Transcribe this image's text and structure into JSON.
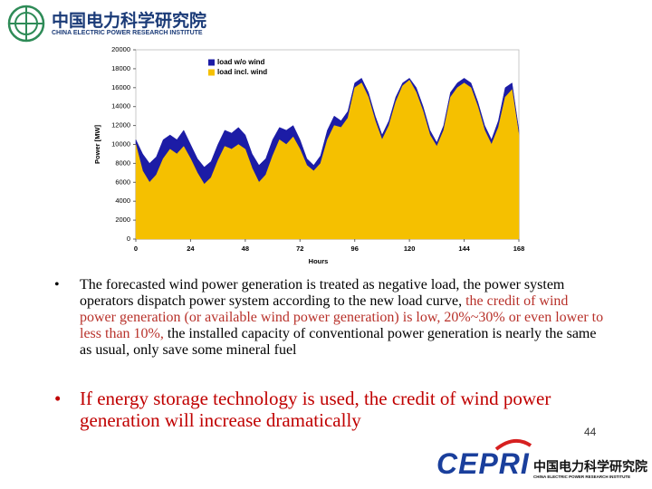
{
  "header": {
    "title": "中国电力科学研究院",
    "subtitle": "CHINA ELECTRIC POWER RESEARCH INSTITUTE"
  },
  "chart_data": {
    "type": "area",
    "xlabel": "Hours",
    "ylabel": "Power [MW]",
    "x": [
      0,
      3,
      6,
      9,
      12,
      15,
      18,
      21,
      24,
      27,
      30,
      33,
      36,
      39,
      42,
      45,
      48,
      51,
      54,
      57,
      60,
      63,
      66,
      69,
      72,
      75,
      78,
      81,
      84,
      87,
      90,
      93,
      96,
      99,
      102,
      105,
      108,
      111,
      114,
      117,
      120,
      123,
      126,
      129,
      132,
      135,
      138,
      141,
      144,
      147,
      150,
      153,
      156,
      159,
      162,
      165,
      168
    ],
    "series": [
      {
        "name": "load w/o wind",
        "color": "#1c1ca6",
        "values": [
          10500,
          9000,
          8000,
          8700,
          10500,
          11000,
          10500,
          11500,
          10000,
          8500,
          7600,
          8200,
          10000,
          11500,
          11200,
          11800,
          11000,
          9000,
          7800,
          8500,
          10500,
          11800,
          11500,
          12000,
          10500,
          8500,
          7800,
          8800,
          11500,
          13000,
          12500,
          13500,
          16500,
          17000,
          15500,
          13000,
          11000,
          12500,
          15000,
          16500,
          17000,
          16000,
          14000,
          11500,
          10200,
          12000,
          15500,
          16500,
          17000,
          16500,
          14500,
          12000,
          10500,
          12500,
          16000,
          16500,
          11500
        ]
      },
      {
        "name": "load incl. wind",
        "color": "#f5c000",
        "values": [
          10000,
          7200,
          6000,
          6800,
          8500,
          9500,
          9000,
          9800,
          8500,
          7000,
          5800,
          6500,
          8300,
          9800,
          9500,
          10000,
          9500,
          7500,
          6000,
          6800,
          8800,
          10500,
          10000,
          10800,
          9500,
          7800,
          7200,
          8000,
          10500,
          12000,
          11800,
          12800,
          16000,
          16500,
          15000,
          12500,
          10500,
          12000,
          14500,
          16200,
          16800,
          15500,
          13500,
          11000,
          9800,
          11500,
          15000,
          16000,
          16500,
          16000,
          14000,
          11500,
          10000,
          11800,
          15000,
          15800,
          11000
        ]
      }
    ],
    "xlim": [
      0,
      168
    ],
    "xticks": [
      0,
      24,
      48,
      72,
      96,
      120,
      144,
      168
    ],
    "ylim": [
      0,
      20000
    ],
    "yticks": [
      0,
      2000,
      4000,
      6000,
      8000,
      10000,
      12000,
      14000,
      16000,
      18000,
      20000
    ],
    "grid": false,
    "legend": "upper left"
  },
  "bullets": [
    {
      "segments": [
        {
          "text": "The forecasted wind power generation is treated as negative load, the power system operators dispatch power system according to the new load curve, ",
          "color": "#000000"
        },
        {
          "text": "the credit of wind power generation (or available wind power generation) is low, 20%~30% or even lower to less than 10%, ",
          "color": "#b8312a"
        },
        {
          "text": "the installed capacity of  conventional power generation is nearly the same as usual, only save some mineral fuel",
          "color": "#000000"
        }
      ]
    },
    {
      "segments": [
        {
          "text": "If energy storage technology is used, the credit of wind power generation will increase dramatically",
          "color": "#c00000"
        }
      ]
    }
  ],
  "page_number": "44",
  "footer": {
    "logo": "CEPRI",
    "title": "中国电力科学研究院",
    "subtitle": "CHINA ELECTRIC POWER RESEARCH INSTITUTE"
  }
}
